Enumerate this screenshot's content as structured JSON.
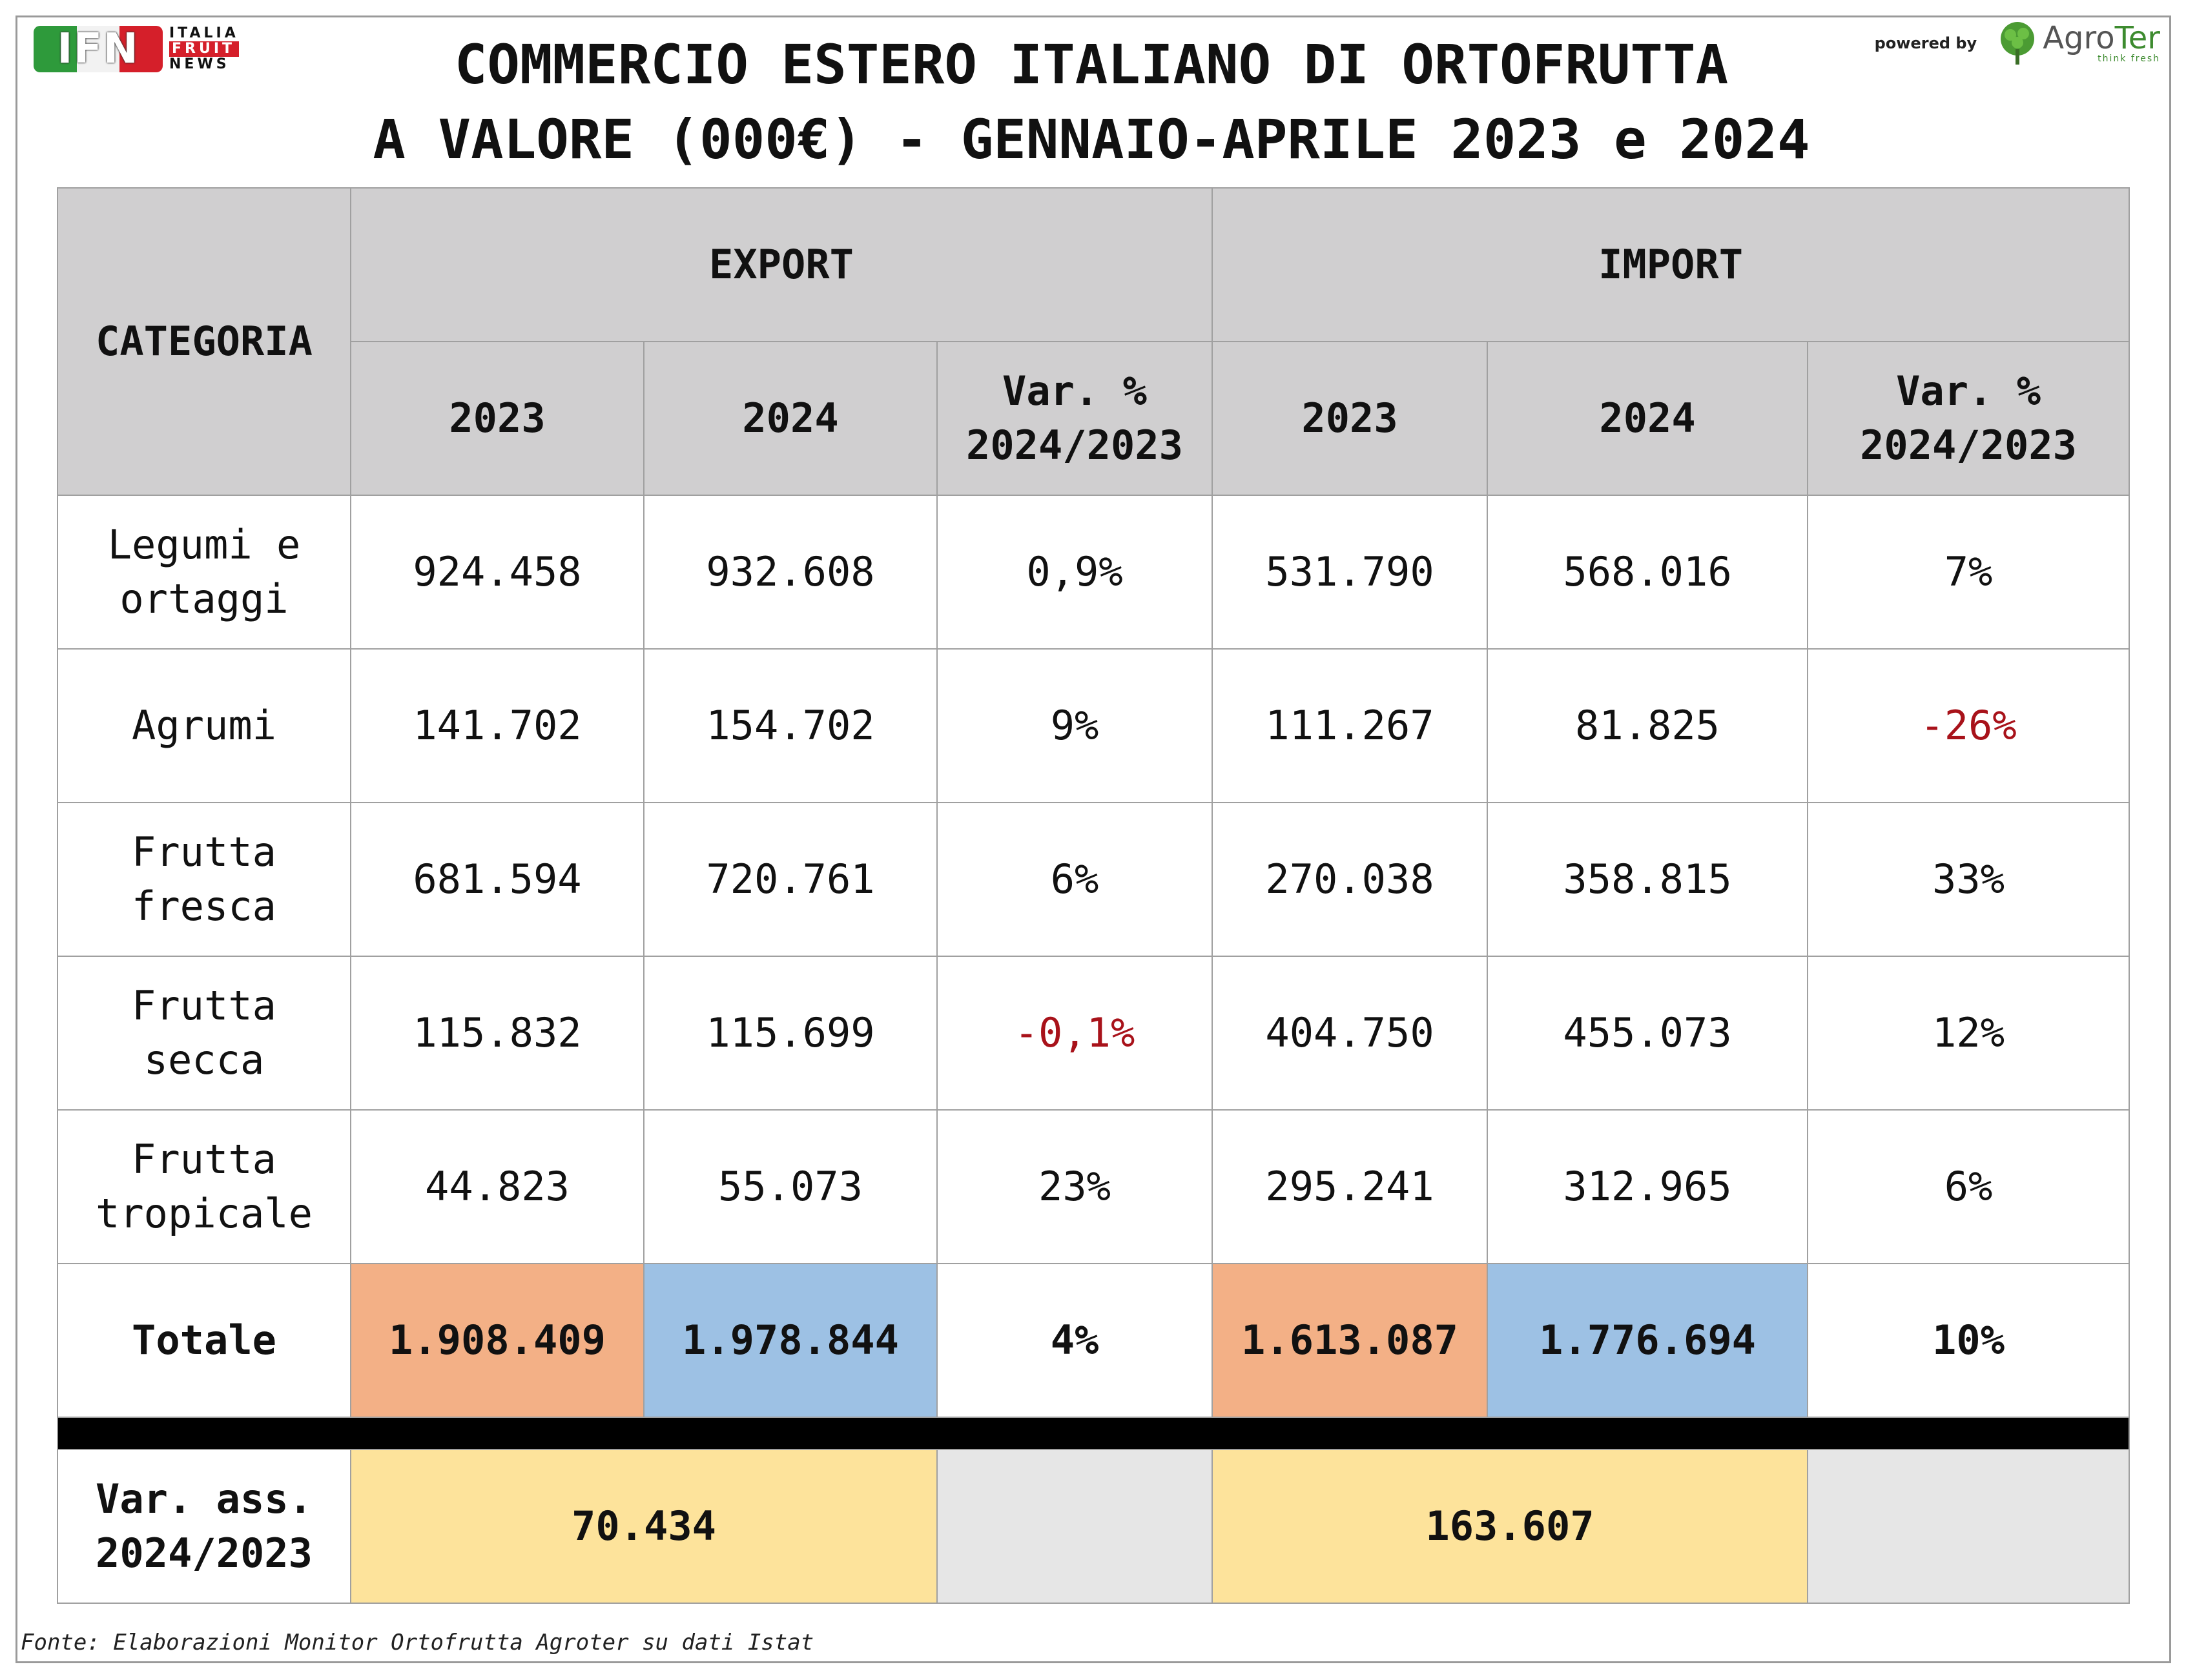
{
  "logos": {
    "ifn_letters": "IFN",
    "ifn_line1": "ITALIA",
    "ifn_line2": "FRUIT",
    "ifn_line3": "NEWS",
    "powered_by": "powered by",
    "agroter_a": "Agro",
    "agroter_b": "Ter",
    "agroter_tagline": "think fresh"
  },
  "title_line1": "COMMERCIO ESTERO ITALIANO DI ORTOFRUTTA",
  "title_line2": "A VALORE (000€) - GENNAIO-APRILE 2023 e 2024",
  "source": "Fonte: Elaborazioni Monitor Ortofrutta Agroter su dati Istat",
  "colors": {
    "header_bg": "#d0cfd0",
    "total_2023_bg": "#f3b086",
    "total_2024_bg": "#9dc1e4",
    "var_ass_bg": "#fde39b",
    "negative_text": "#a8121a"
  },
  "chart_data": {
    "type": "table",
    "title": "COMMERCIO ESTERO ITALIANO DI ORTOFRUTTA A VALORE (000€) - GENNAIO-APRILE 2023 e 2024",
    "header": {
      "categoria": "CATEGORIA",
      "export": "EXPORT",
      "import": "IMPORT",
      "y2023": "2023",
      "y2024": "2024",
      "var": "Var. %\n2024/2023"
    },
    "rows": [
      {
        "categoria": "Legumi e\nortaggi",
        "export": [
          "924.458",
          "932.608",
          "0,9%"
        ],
        "import": [
          "531.790",
          "568.016",
          "7%"
        ]
      },
      {
        "categoria": "Agrumi",
        "export": [
          "141.702",
          "154.702",
          "9%"
        ],
        "import": [
          "111.267",
          "81.825",
          "-26%"
        ]
      },
      {
        "categoria": "Frutta\nfresca",
        "export": [
          "681.594",
          "720.761",
          "6%"
        ],
        "import": [
          "270.038",
          "358.815",
          "33%"
        ]
      },
      {
        "categoria": "Frutta\nsecca",
        "export": [
          "115.832",
          "115.699",
          "-0,1%"
        ],
        "import": [
          "404.750",
          "455.073",
          "12%"
        ]
      },
      {
        "categoria": "Frutta\ntropicale",
        "export": [
          "44.823",
          "55.073",
          "23%"
        ],
        "import": [
          "295.241",
          "312.965",
          "6%"
        ]
      }
    ],
    "total": {
      "categoria": "Totale",
      "export": [
        "1.908.409",
        "1.978.844",
        "4%"
      ],
      "import": [
        "1.613.087",
        "1.776.694",
        "10%"
      ]
    },
    "var_ass": {
      "label": "Var. ass.\n2024/2023",
      "export": "70.434",
      "import": "163.607"
    }
  }
}
